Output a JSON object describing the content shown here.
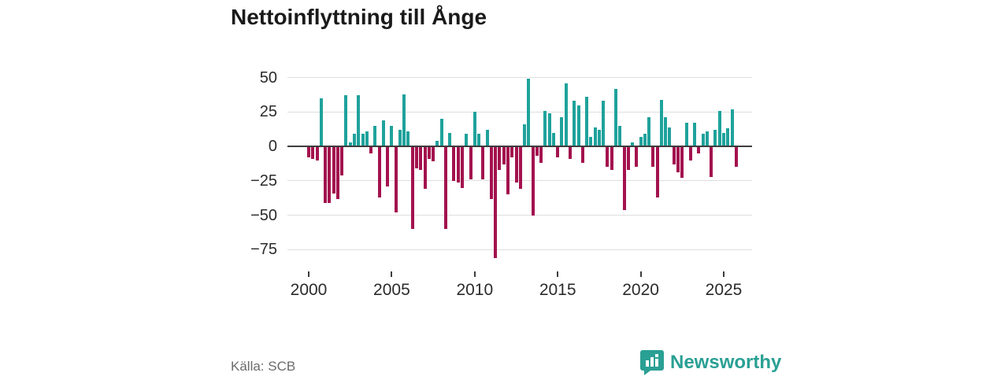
{
  "title": "Nettoinflyttning till Ånge",
  "source": "Källa: SCB",
  "brand": {
    "name": "Newsworthy"
  },
  "colors": {
    "positive": "#1fa29c",
    "negative": "#a3124e",
    "gridline": "#dedede",
    "zeroline": "#3d3d3d",
    "brand_teal": "#2aa094"
  },
  "chart_data": {
    "type": "bar",
    "title": "Nettoinflyttning till Ånge",
    "xlabel": "",
    "ylabel": "",
    "frequency": "quarterly",
    "x_start_year": 2000,
    "x_tick_labels": [
      "2000",
      "2005",
      "2010",
      "2015",
      "2020",
      "2025"
    ],
    "x_tick_indices": [
      0,
      20,
      40,
      60,
      80,
      100
    ],
    "y_ticks": [
      50,
      25,
      0,
      -25,
      -50,
      -75
    ],
    "y_tick_labels": [
      "50",
      "25",
      "0",
      "−25",
      "−50",
      "−75"
    ],
    "ylim": [
      -85,
      55
    ],
    "grid": true,
    "legend": false,
    "values": [
      -8,
      -9,
      -10,
      35,
      -41,
      -41,
      -34,
      -38,
      -21,
      37,
      3,
      9,
      37,
      9,
      11,
      -5,
      15,
      -37,
      19,
      -29,
      15,
      -48,
      12,
      38,
      11,
      -60,
      -16,
      -17,
      -31,
      -9,
      -11,
      4,
      20,
      -60,
      10,
      -25,
      -26,
      -30,
      9,
      -24,
      25,
      9,
      -24,
      12,
      -38,
      -81,
      -17,
      -13,
      -35,
      -8,
      -26,
      -31,
      16,
      49,
      -50,
      -7,
      -12,
      26,
      24,
      10,
      -8,
      21,
      46,
      -9,
      33,
      30,
      -12,
      36,
      7,
      14,
      12,
      33,
      -15,
      -17,
      42,
      15,
      -46,
      -17,
      3,
      -15,
      7,
      9,
      21,
      -15,
      -37,
      34,
      21,
      14,
      -13,
      -19,
      -23,
      17,
      -10,
      17,
      -5,
      9,
      11,
      -22,
      12,
      26,
      10,
      13,
      27,
      -15
    ]
  }
}
